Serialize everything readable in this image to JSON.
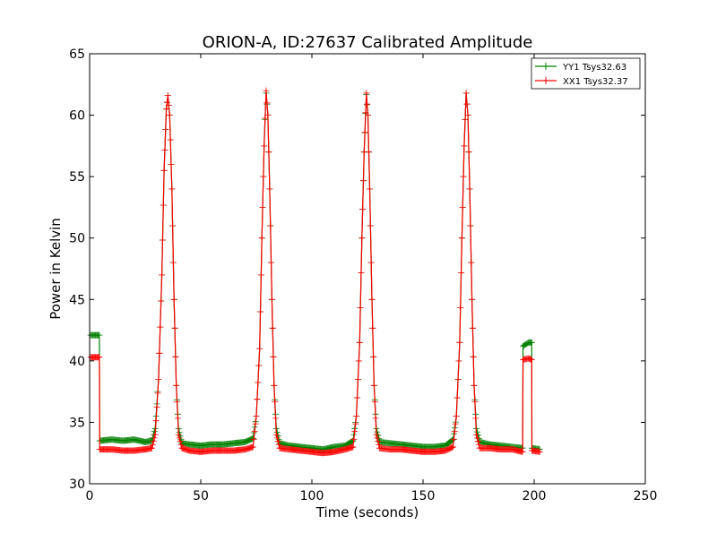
{
  "chart_data": {
    "type": "line",
    "title": "ORION-A, ID:27637 Calibrated Amplitude",
    "xlabel": "Time (seconds)",
    "ylabel": "Power in Kelvin",
    "xlim": [
      0,
      250
    ],
    "ylim": [
      30,
      65
    ],
    "xticks": [
      0,
      50,
      100,
      150,
      200,
      250
    ],
    "yticks": [
      30,
      35,
      40,
      45,
      50,
      55,
      60,
      65
    ],
    "grid": false,
    "legend_position": "top-right",
    "marker": "+",
    "series": [
      {
        "name": "YY1 Tsys32.63",
        "color": "#008000",
        "points": [
          [
            0.5,
            42.1
          ],
          [
            4.4,
            42.1
          ],
          [
            4.5,
            33.5
          ],
          [
            10,
            33.6
          ],
          [
            15,
            33.5
          ],
          [
            20,
            33.6
          ],
          [
            25,
            33.4
          ],
          [
            28,
            33.5
          ],
          [
            29.5,
            34.5
          ],
          [
            31,
            38.5
          ],
          [
            32.5,
            47.0
          ],
          [
            33.5,
            55.5
          ],
          [
            34.5,
            60.5
          ],
          [
            35.2,
            61.6
          ],
          [
            36,
            60.0
          ],
          [
            37,
            54.0
          ],
          [
            38,
            45.0
          ],
          [
            39,
            38.0
          ],
          [
            40,
            34.5
          ],
          [
            41.5,
            33.3
          ],
          [
            45,
            33.2
          ],
          [
            50,
            33.1
          ],
          [
            55,
            33.2
          ],
          [
            60,
            33.2
          ],
          [
            65,
            33.3
          ],
          [
            70,
            33.4
          ],
          [
            73.5,
            33.7
          ],
          [
            75,
            35.5
          ],
          [
            76.5,
            41.0
          ],
          [
            77.5,
            50.0
          ],
          [
            78.5,
            57.5
          ],
          [
            79.4,
            61.8
          ],
          [
            80.2,
            60.0
          ],
          [
            81,
            54.0
          ],
          [
            82,
            45.0
          ],
          [
            83,
            38.0
          ],
          [
            84,
            34.5
          ],
          [
            85.5,
            33.3
          ],
          [
            90,
            33.1
          ],
          [
            95,
            33.0
          ],
          [
            100,
            32.9
          ],
          [
            105,
            32.8
          ],
          [
            110,
            33.0
          ],
          [
            115,
            33.1
          ],
          [
            118.5,
            33.5
          ],
          [
            120,
            35.5
          ],
          [
            121.5,
            41.5
          ],
          [
            122.5,
            50.0
          ],
          [
            123.5,
            57.0
          ],
          [
            124.5,
            61.7
          ],
          [
            125.2,
            60.0
          ],
          [
            126,
            54.0
          ],
          [
            127,
            45.0
          ],
          [
            128,
            38.0
          ],
          [
            129,
            34.5
          ],
          [
            130.5,
            33.4
          ],
          [
            135,
            33.3
          ],
          [
            140,
            33.2
          ],
          [
            145,
            33.1
          ],
          [
            150,
            33.0
          ],
          [
            155,
            33.0
          ],
          [
            160,
            33.1
          ],
          [
            163.5,
            33.6
          ],
          [
            165,
            35.5
          ],
          [
            166.5,
            41.5
          ],
          [
            167.5,
            50.0
          ],
          [
            168.5,
            57.5
          ],
          [
            169.4,
            61.8
          ],
          [
            170.2,
            60.0
          ],
          [
            171,
            54.0
          ],
          [
            172,
            45.0
          ],
          [
            173,
            38.0
          ],
          [
            174,
            34.5
          ],
          [
            175.5,
            33.4
          ],
          [
            180,
            33.2
          ],
          [
            185,
            33.1
          ],
          [
            190,
            33.0
          ],
          [
            194.8,
            32.9
          ],
          [
            195.0,
            41.2
          ],
          [
            197.5,
            41.5
          ],
          [
            198.9,
            41.5
          ],
          [
            199.0,
            32.9
          ],
          [
            202.5,
            32.8
          ]
        ]
      },
      {
        "name": "XX1 Tsys32.37",
        "color": "#ff0000",
        "points": [
          [
            0.5,
            40.3
          ],
          [
            4.4,
            40.3
          ],
          [
            4.5,
            32.8
          ],
          [
            10,
            32.8
          ],
          [
            15,
            32.7
          ],
          [
            20,
            32.7
          ],
          [
            25,
            32.8
          ],
          [
            28,
            32.9
          ],
          [
            29.5,
            34.0
          ],
          [
            31,
            38.5
          ],
          [
            32.5,
            47.0
          ],
          [
            33.5,
            55.5
          ],
          [
            34.5,
            60.5
          ],
          [
            35.2,
            61.6
          ],
          [
            36,
            60.0
          ],
          [
            37,
            54.0
          ],
          [
            38,
            45.0
          ],
          [
            39,
            38.0
          ],
          [
            40,
            34.0
          ],
          [
            41.5,
            32.9
          ],
          [
            45,
            32.7
          ],
          [
            50,
            32.6
          ],
          [
            55,
            32.7
          ],
          [
            60,
            32.7
          ],
          [
            65,
            32.7
          ],
          [
            70,
            32.8
          ],
          [
            73.5,
            33.0
          ],
          [
            75,
            35.5
          ],
          [
            76.5,
            41.0
          ],
          [
            77.5,
            50.0
          ],
          [
            78.5,
            57.5
          ],
          [
            79.4,
            62.0
          ],
          [
            80.2,
            60.0
          ],
          [
            81,
            54.0
          ],
          [
            82,
            45.0
          ],
          [
            83,
            38.0
          ],
          [
            84,
            34.0
          ],
          [
            85.5,
            32.9
          ],
          [
            90,
            32.8
          ],
          [
            95,
            32.7
          ],
          [
            100,
            32.6
          ],
          [
            105,
            32.5
          ],
          [
            110,
            32.6
          ],
          [
            115,
            32.8
          ],
          [
            118.5,
            33.0
          ],
          [
            120,
            35.5
          ],
          [
            121.5,
            41.5
          ],
          [
            122.5,
            50.0
          ],
          [
            123.5,
            57.0
          ],
          [
            124.5,
            61.8
          ],
          [
            125.2,
            60.0
          ],
          [
            126,
            54.0
          ],
          [
            127,
            45.0
          ],
          [
            128,
            38.0
          ],
          [
            129,
            34.0
          ],
          [
            130.5,
            32.9
          ],
          [
            135,
            32.8
          ],
          [
            140,
            32.8
          ],
          [
            145,
            32.7
          ],
          [
            150,
            32.6
          ],
          [
            155,
            32.6
          ],
          [
            160,
            32.7
          ],
          [
            163.5,
            33.0
          ],
          [
            165,
            35.5
          ],
          [
            166.5,
            41.5
          ],
          [
            167.5,
            50.0
          ],
          [
            168.5,
            57.5
          ],
          [
            169.4,
            61.8
          ],
          [
            170.2,
            60.0
          ],
          [
            171,
            54.0
          ],
          [
            172,
            45.0
          ],
          [
            173,
            38.0
          ],
          [
            174,
            34.0
          ],
          [
            175.5,
            32.9
          ],
          [
            180,
            32.9
          ],
          [
            185,
            32.8
          ],
          [
            190,
            32.8
          ],
          [
            194.8,
            32.6
          ],
          [
            195.0,
            40.1
          ],
          [
            197.5,
            40.2
          ],
          [
            198.9,
            40.1
          ],
          [
            199.0,
            32.7
          ],
          [
            202.5,
            32.6
          ]
        ]
      }
    ]
  }
}
